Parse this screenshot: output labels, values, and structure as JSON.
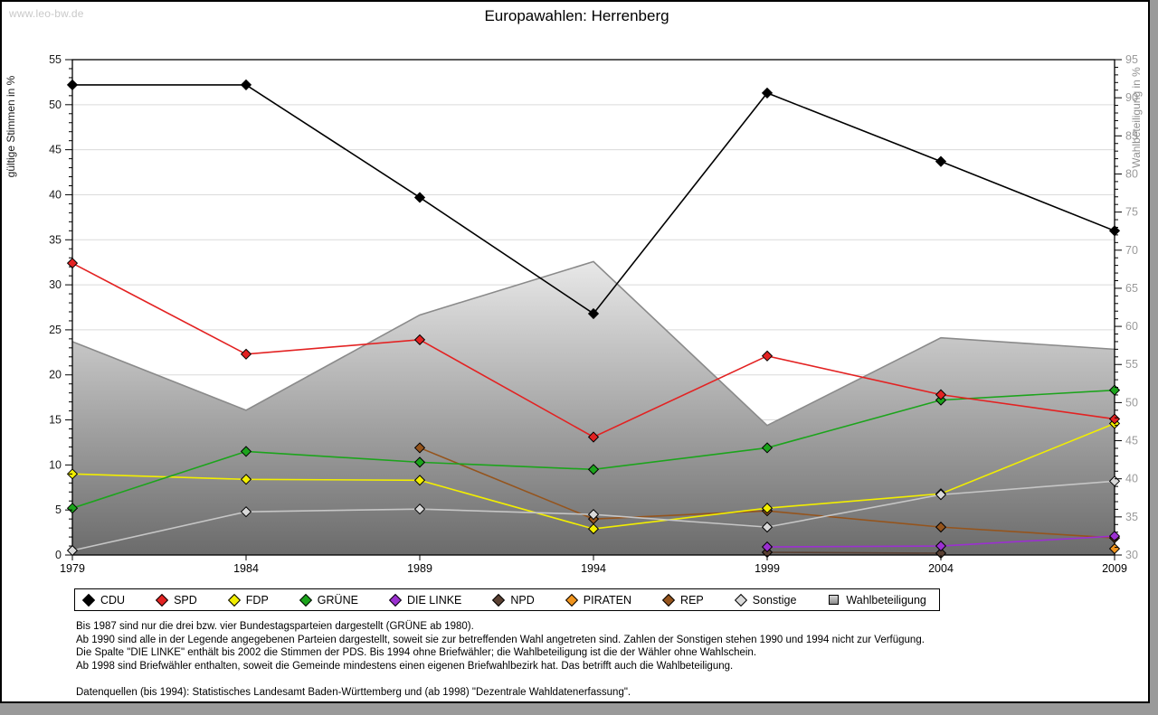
{
  "site": "www.leo-bw.de",
  "title": "Europawahlen: Herrenberg",
  "footer": {
    "lines": [
      "Bis 1987 sind nur die drei bzw. vier Bundestagsparteien dargestellt (GRÜNE ab 1980).",
      "Ab 1990 sind alle in der Legende angegebenen Parteien dargestellt, soweit sie zur betreffenden Wahl angetreten sind. Zahlen der Sonstigen stehen 1990 und 1994 nicht zur Verfügung.",
      "Die Spalte \"DIE LINKE\" enthält bis 2002 die Stimmen der PDS. Bis 1994 ohne Briefwähler; die Wahlbeteiligung ist die der Wähler ohne Wahlschein.",
      "Ab 1998 sind Briefwähler enthalten, soweit die Gemeinde mindestens einen eigenen Briefwahlbezirk hat. Das betrifft auch die Wahlbeteiligung."
    ],
    "source": "Datenquellen (bis 1994): Statistisches Landesamt Baden-Württemberg und (ab 1998) \"Dezentrale Wahldatenerfassung\"."
  },
  "chart_data": {
    "type": "line",
    "title": "Europawahlen: Herrenberg",
    "x": [
      1979,
      1984,
      1989,
      1994,
      1999,
      2004,
      2009
    ],
    "axis_left": {
      "label": "gültige Stimmen in %",
      "min": 0,
      "max": 55,
      "tick_step": 5
    },
    "axis_right": {
      "label": "Wahlbeteiligung in %",
      "min": 30,
      "max": 95,
      "tick_step": 5
    },
    "grid": "horizontal-only",
    "legend_position": "bottom-box",
    "series": [
      {
        "name": "CDU",
        "color": "#000000",
        "axis": "left",
        "style": "line",
        "values": [
          52.2,
          52.2,
          39.7,
          26.8,
          51.3,
          43.7,
          36.0
        ]
      },
      {
        "name": "SPD",
        "color": "#e32222",
        "axis": "left",
        "style": "line",
        "values": [
          32.4,
          22.3,
          23.9,
          13.1,
          22.1,
          17.8,
          15.1
        ]
      },
      {
        "name": "FDP",
        "color": "#f2ee00",
        "axis": "left",
        "style": "line",
        "values": [
          9.0,
          8.4,
          8.3,
          2.9,
          5.2,
          6.8,
          14.6
        ]
      },
      {
        "name": "GRÜNE",
        "color": "#1ca41c",
        "axis": "left",
        "style": "line",
        "values": [
          5.2,
          11.5,
          10.3,
          9.5,
          11.9,
          17.2,
          18.3
        ]
      },
      {
        "name": "DIE LINKE",
        "color": "#9b30d0",
        "axis": "left",
        "style": "line",
        "values": [
          null,
          null,
          null,
          null,
          0.9,
          1.0,
          2.1
        ]
      },
      {
        "name": "NPD",
        "color": "#5a4032",
        "axis": "left",
        "style": "line",
        "values": [
          null,
          null,
          null,
          null,
          0.3,
          0.2,
          null
        ]
      },
      {
        "name": "PIRATEN",
        "color": "#f0941e",
        "axis": "left",
        "style": "line",
        "values": [
          null,
          null,
          null,
          null,
          null,
          null,
          0.7
        ]
      },
      {
        "name": "REP",
        "color": "#95541c",
        "axis": "left",
        "style": "line",
        "values": [
          null,
          null,
          11.9,
          4.0,
          4.9,
          3.1,
          1.9
        ]
      },
      {
        "name": "Sonstige",
        "color": "#c6c6c6",
        "axis": "left",
        "style": "line",
        "marker_fill": "#d9d9d9",
        "values": [
          0.5,
          4.8,
          5.1,
          4.5,
          3.1,
          6.7,
          8.2
        ]
      },
      {
        "name": "Wahlbeteiligung",
        "color": "#8a8a8a",
        "axis": "right",
        "style": "area",
        "values": [
          58,
          49,
          61.5,
          68.5,
          47,
          58.5,
          57
        ]
      }
    ]
  }
}
